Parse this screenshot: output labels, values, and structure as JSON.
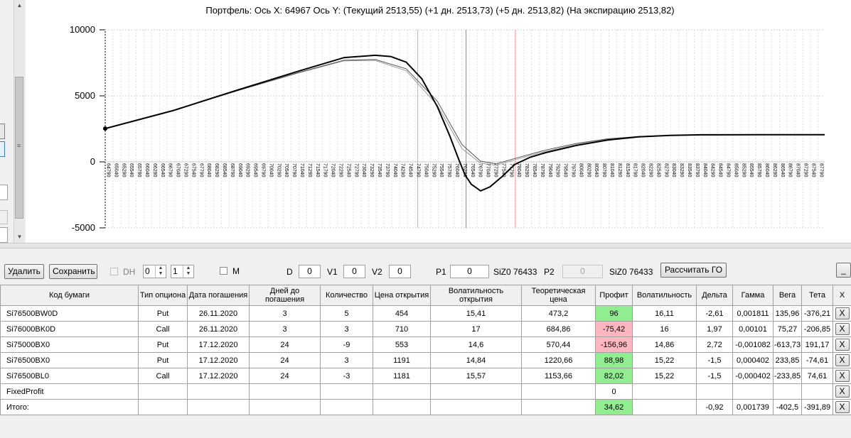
{
  "chart": {
    "title": "Портфель: Ось X: 64967 Ось Y:  (Текущий 2513,55)  (+1 дн. 2513,73)  (+5 дн. 2513,82)  (На экспирацию 2513,82)"
  },
  "chart_data": {
    "type": "line",
    "xlim": [
      64790,
      88000
    ],
    "ylim": [
      -5000,
      10000
    ],
    "ytick_labels": [
      "10000",
      "5000",
      "0",
      "-5000"
    ],
    "ytick_values": [
      10000,
      5000,
      0,
      -5000
    ],
    "xtick_start": 64790,
    "xtick_step": 250,
    "xtick_end": 87990,
    "vertical_markers": [
      {
        "x": 74870,
        "color": "#f4a0a0"
      },
      {
        "x": 76430,
        "color": "#909090"
      },
      {
        "x": 78020,
        "color": "#f4a0a0"
      }
    ],
    "series": [
      {
        "color": "#000000",
        "points": [
          [
            64790,
            2520
          ],
          [
            67000,
            3900
          ],
          [
            69000,
            5400
          ],
          [
            71000,
            6850
          ],
          [
            72500,
            7900
          ],
          [
            73500,
            8070
          ],
          [
            74000,
            7980
          ],
          [
            74500,
            7550
          ],
          [
            75000,
            6300
          ],
          [
            75500,
            4200
          ],
          [
            75900,
            2000
          ],
          [
            76200,
            150
          ],
          [
            76400,
            -1000
          ],
          [
            76600,
            -1700
          ],
          [
            76900,
            -2200
          ],
          [
            77200,
            -1900
          ],
          [
            77600,
            -1100
          ],
          [
            78000,
            -200
          ],
          [
            78500,
            350
          ],
          [
            79000,
            700
          ],
          [
            80000,
            1250
          ],
          [
            81000,
            1650
          ],
          [
            82000,
            1900
          ],
          [
            83000,
            2000
          ],
          [
            84000,
            2050
          ],
          [
            86000,
            2060
          ],
          [
            88000,
            2060
          ]
        ]
      },
      {
        "color": "#555555",
        "points": [
          [
            64790,
            2520
          ],
          [
            67000,
            3900
          ],
          [
            69000,
            5350
          ],
          [
            71000,
            6750
          ],
          [
            72500,
            7700
          ],
          [
            73500,
            7750
          ],
          [
            74500,
            7050
          ],
          [
            75500,
            4600
          ],
          [
            76300,
            1300
          ],
          [
            76900,
            50
          ],
          [
            77400,
            -150
          ],
          [
            78000,
            250
          ],
          [
            79000,
            900
          ],
          [
            80000,
            1400
          ],
          [
            81000,
            1750
          ],
          [
            82000,
            1920
          ],
          [
            83000,
            2000
          ],
          [
            84000,
            2040
          ],
          [
            86000,
            2060
          ],
          [
            88000,
            2060
          ]
        ]
      },
      {
        "color": "#999999",
        "points": [
          [
            64790,
            2520
          ],
          [
            67000,
            3900
          ],
          [
            69000,
            5350
          ],
          [
            71000,
            6720
          ],
          [
            72500,
            7650
          ],
          [
            73500,
            7680
          ],
          [
            74500,
            6900
          ],
          [
            75500,
            4300
          ],
          [
            76300,
            1000
          ],
          [
            76900,
            -100
          ],
          [
            77400,
            -250
          ],
          [
            78000,
            150
          ],
          [
            79000,
            800
          ],
          [
            80000,
            1320
          ],
          [
            81000,
            1700
          ],
          [
            82000,
            1900
          ],
          [
            83000,
            1990
          ],
          [
            84000,
            2030
          ],
          [
            86000,
            2055
          ],
          [
            88000,
            2060
          ]
        ]
      }
    ]
  },
  "toolbar": {
    "delete_label": "Удалить",
    "save_label": "Сохранить",
    "dh_label": "DH",
    "spin1_value": "0",
    "spin2_value": "1",
    "m_label": "M",
    "d_label": "D",
    "d_value": "0",
    "v1_label": "V1",
    "v1_value": "0",
    "v2_label": "V2",
    "v2_value": "0",
    "p1_label": "P1",
    "p1_value": "0",
    "p1_ticker": "SiZ0 76433",
    "p2_label": "P2",
    "p2_value": "0",
    "p2_ticker": "SiZ0 76433",
    "calc_label": "Рассчитать ГО",
    "minimize_label": "_"
  },
  "table": {
    "headers": [
      "Код бумаги",
      "Тип опциона",
      "Дата погашения",
      "Дней до погашения",
      "Количество",
      "Цена открытия",
      "Волатильность открытия",
      "Теоретическая цена",
      "Профит",
      "Волатильность",
      "Дельта",
      "Гамма",
      "Вега",
      "Тета",
      "X"
    ],
    "rows": [
      [
        "Si76500BW0D",
        "Put",
        "26.11.2020",
        "3",
        "5",
        "454",
        "15,41",
        "473,2",
        "96",
        "16,11",
        "-2,61",
        "0,001811",
        "135,96",
        "-376,21",
        "X"
      ],
      [
        "Si76000BK0D",
        "Call",
        "26.11.2020",
        "3",
        "3",
        "710",
        "17",
        "684,86",
        "-75,42",
        "16",
        "1,97",
        "0,00101",
        "75,27",
        "-206,85",
        "X"
      ],
      [
        "Si75000BX0",
        "Put",
        "17.12.2020",
        "24",
        "-9",
        "553",
        "14,6",
        "570,44",
        "-156,96",
        "14,86",
        "2,72",
        "-0,001082",
        "-613,73",
        "191,17",
        "X"
      ],
      [
        "Si76500BX0",
        "Put",
        "17.12.2020",
        "24",
        "3",
        "1191",
        "14,84",
        "1220,66",
        "88,98",
        "15,22",
        "-1,5",
        "0,000402",
        "233,85",
        "-74,61",
        "X"
      ],
      [
        "Si76500BL0",
        "Call",
        "17.12.2020",
        "24",
        "-3",
        "1181",
        "15,57",
        "1153,66",
        "82,02",
        "15,22",
        "-1,5",
        "-0,000402",
        "-233,85",
        "74,61",
        "X"
      ],
      [
        "FixedProfit",
        "",
        "",
        "",
        "",
        "",
        "",
        "",
        "0",
        "",
        "",
        "",
        "",
        "",
        "X"
      ],
      [
        "Итого:",
        "",
        "",
        "",
        "",
        "",
        "",
        "",
        "34,62",
        "",
        "-0,92",
        "0,001739",
        "-402,5",
        "-391,89",
        "X"
      ]
    ],
    "profit_colors": [
      "pos",
      "neg",
      "neg",
      "pos",
      "pos",
      "",
      "pos"
    ],
    "colors": {
      "profit_positive": "#90ee90",
      "profit_negative": "#ffb6c1"
    }
  }
}
